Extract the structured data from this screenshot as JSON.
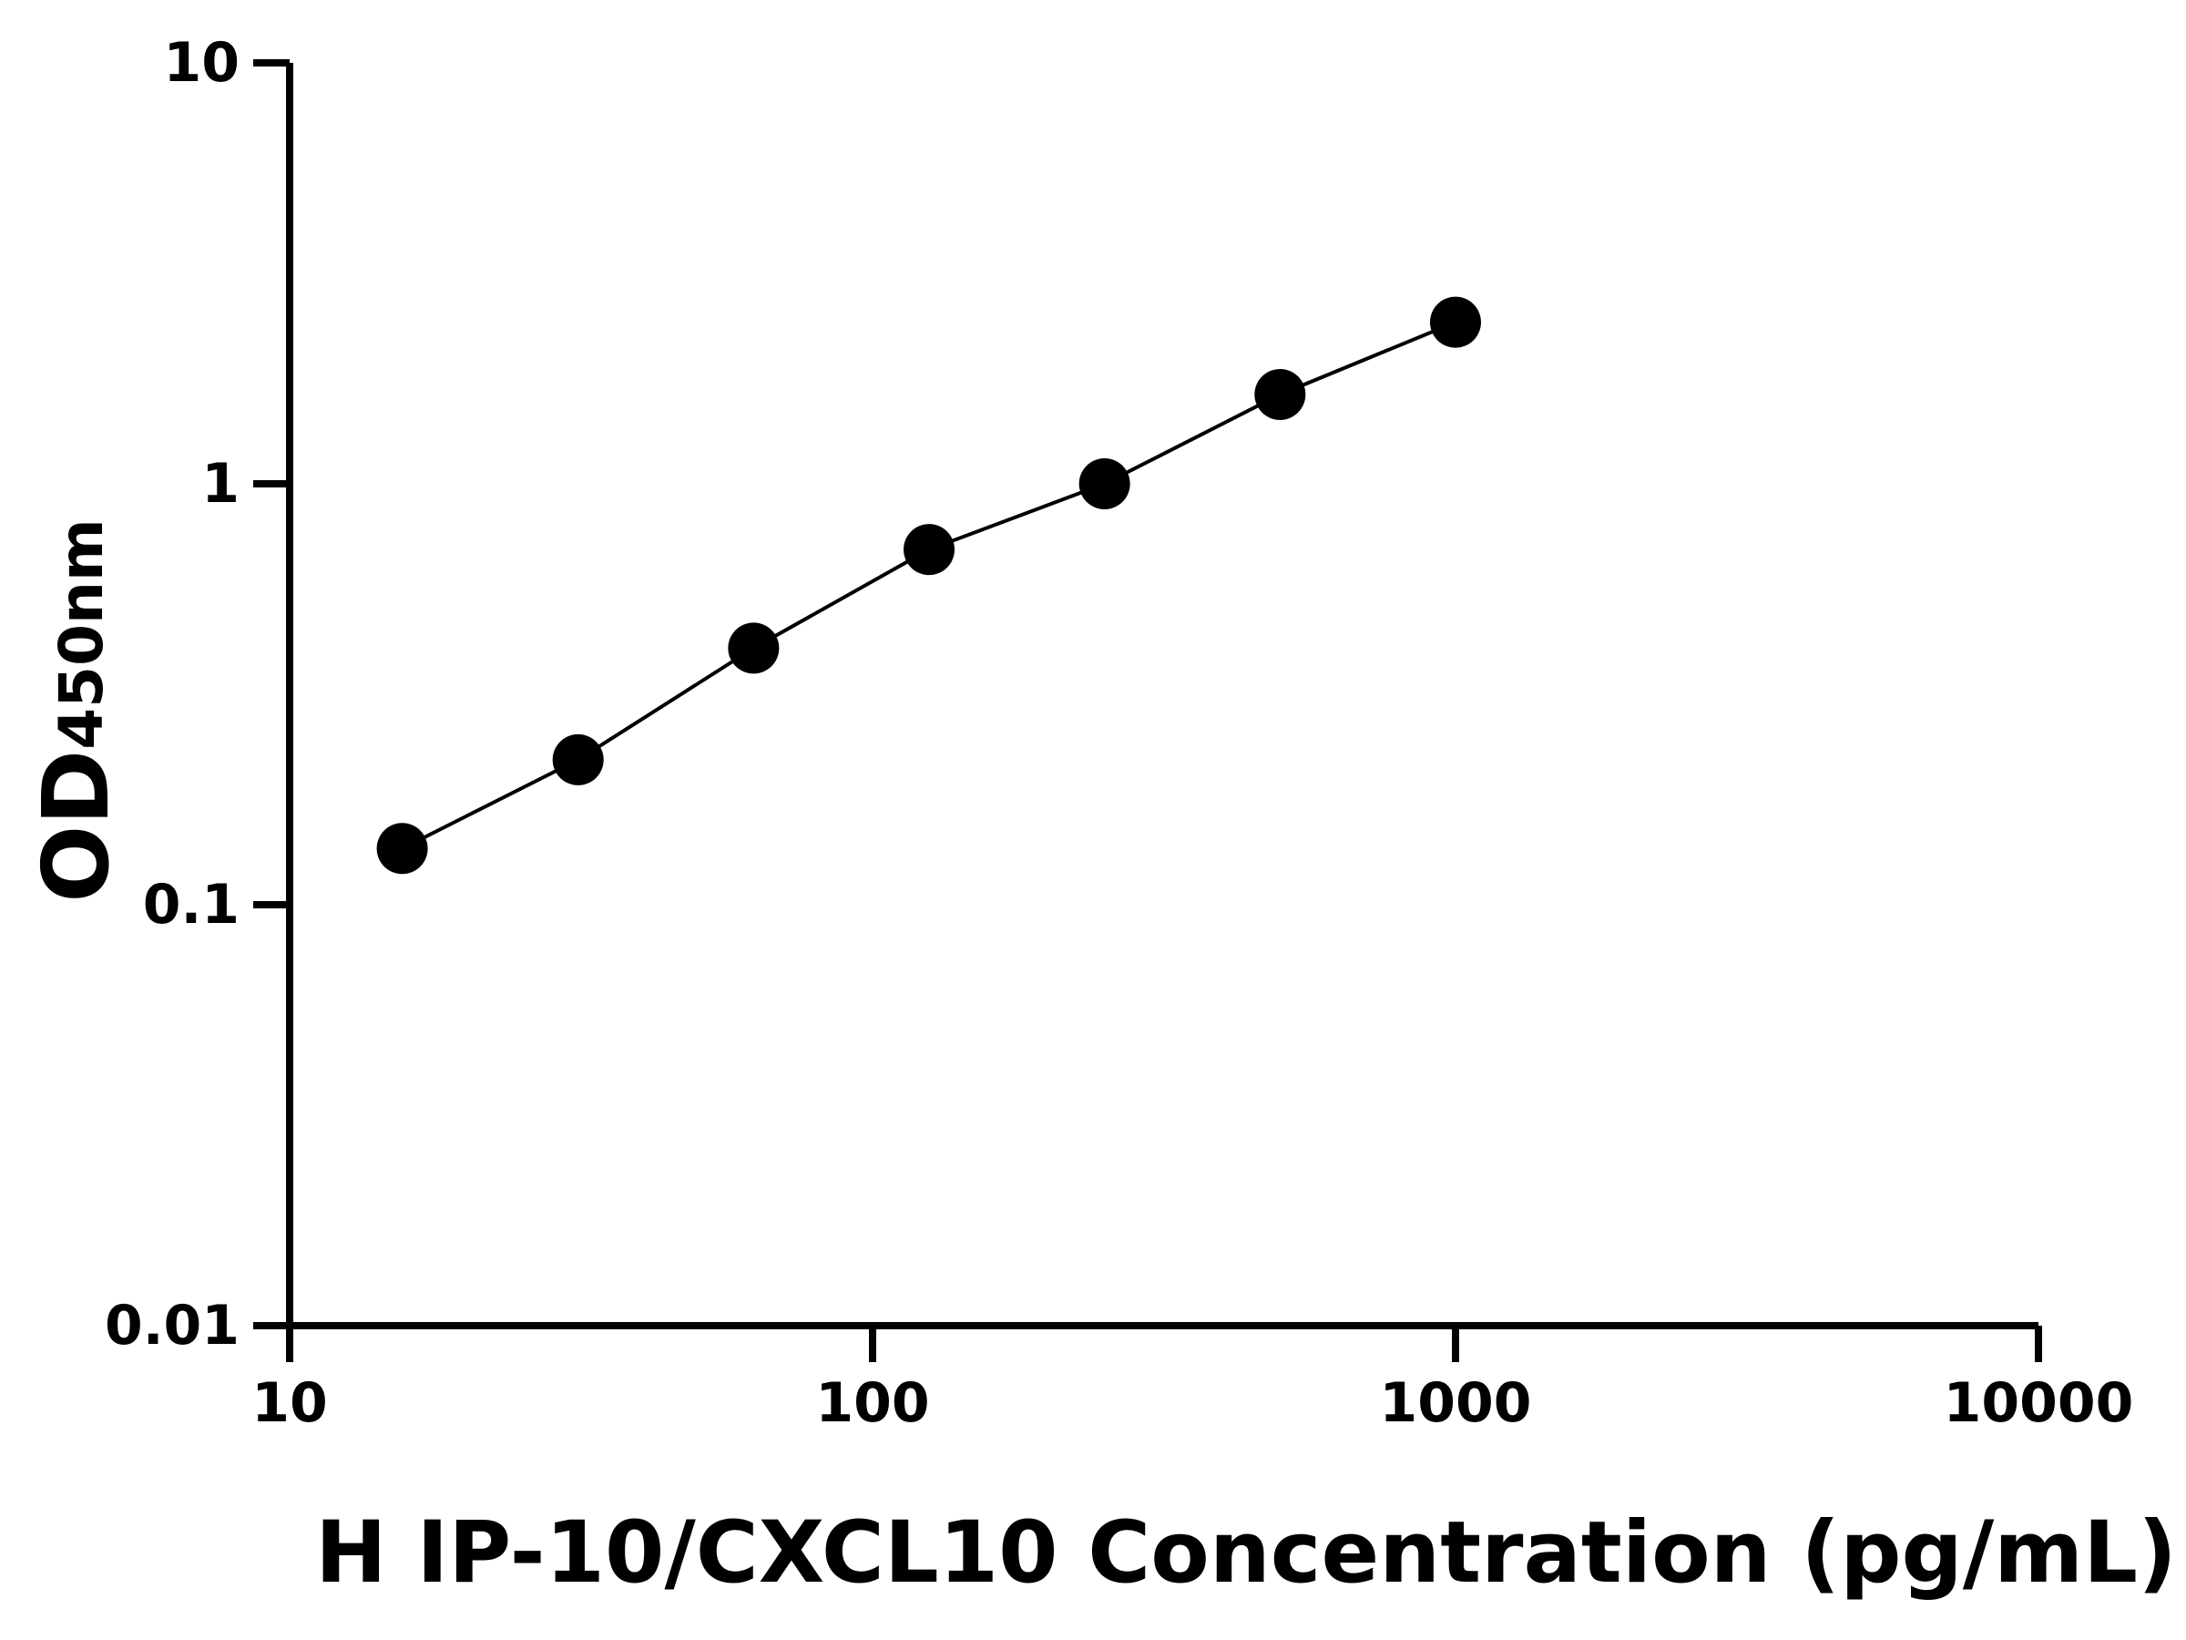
{
  "chart_data": {
    "type": "scatter",
    "xlabel": "H IP-10/CXCL10 Concentration (pg/mL)",
    "ylabel": "OD",
    "ylabel_sub": "450nm",
    "x": [
      15.6,
      31.25,
      62.5,
      125,
      250,
      500,
      1000
    ],
    "series": [
      {
        "color": "#000000",
        "values": [
          0.136,
          0.221,
          0.407,
          0.698,
          1.0,
          1.63,
          2.42
        ]
      }
    ],
    "xscale": "log",
    "yscale": "log",
    "xlim": [
      10,
      10000
    ],
    "ylim": [
      0.01,
      10
    ],
    "xticks": [
      10,
      100,
      1000,
      10000
    ],
    "yticks": [
      0.01,
      0.1,
      1,
      10
    ],
    "grid": false
  }
}
